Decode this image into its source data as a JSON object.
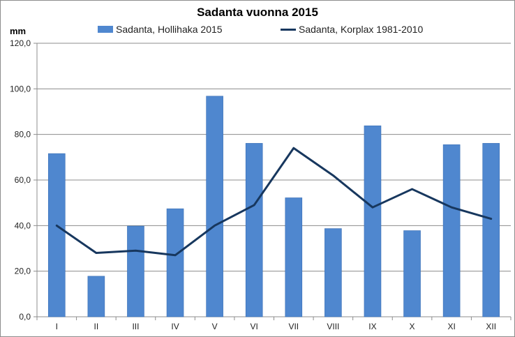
{
  "chart_data": {
    "type": "bar",
    "title": "Sadanta vuonna 2015",
    "ylabel": "mm",
    "xlabel": "",
    "categories": [
      "I",
      "II",
      "III",
      "IV",
      "V",
      "VI",
      "VII",
      "VIII",
      "IX",
      "X",
      "XI",
      "XII"
    ],
    "series": [
      {
        "name": "Sadanta, Hollihaka 2015",
        "type": "bar",
        "color": "#4f87cf",
        "values": [
          71.6,
          17.8,
          39.8,
          47.4,
          96.8,
          76.1,
          52.2,
          38.7,
          83.8,
          37.8,
          75.5,
          76.1
        ]
      },
      {
        "name": "Sadanta, Korplax 1981-2010",
        "type": "line",
        "color": "#17375e",
        "values": [
          40,
          28,
          29,
          27,
          40,
          49,
          74,
          62,
          48,
          56,
          48,
          43
        ]
      }
    ],
    "ylim": [
      0,
      120
    ],
    "yticks": [
      "0,0",
      "20,0",
      "40,0",
      "60,0",
      "80,0",
      "100,0",
      "120,0"
    ],
    "grid": true,
    "legend": "top"
  }
}
